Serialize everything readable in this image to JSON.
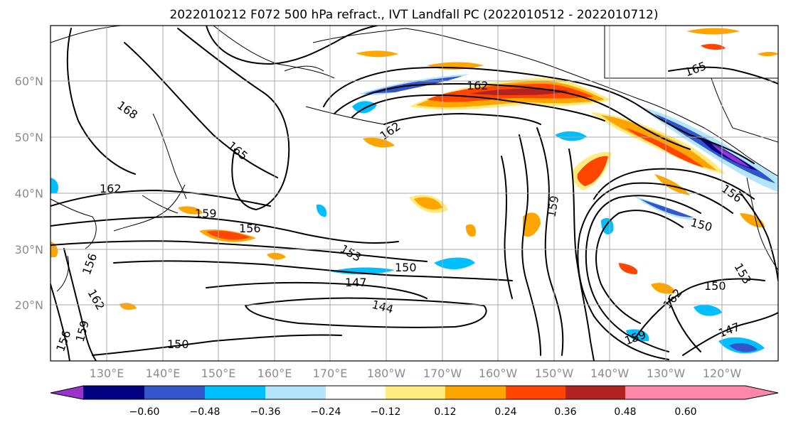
{
  "title": "2022010212 F072 500 hPa refract., IVT Landfall PC (2022010512 - 2022010712)",
  "lat_ticks": [
    "60°N",
    "50°N",
    "40°N",
    "30°N",
    "20°N"
  ],
  "lon_ticks": [
    "130°E",
    "140°E",
    "150°E",
    "160°E",
    "170°E",
    "180°W",
    "170°W",
    "160°W",
    "150°W",
    "140°W",
    "130°W",
    "120°W"
  ],
  "colorbar": {
    "colors": [
      "#9933cc",
      "#000080",
      "#3355cc",
      "#00bfff",
      "#b3e5fc",
      "#ffffff",
      "#ffeb80",
      "#ffa500",
      "#ff4500",
      "#b22222",
      "#ff88aa"
    ],
    "labels": [
      "−0.60",
      "−0.48",
      "−0.36",
      "−0.24",
      "−0.12",
      "0.12",
      "0.24",
      "0.36",
      "0.48",
      "0.60"
    ]
  },
  "contour_labels": [
    "168",
    "165",
    "162",
    "162",
    "162",
    "165",
    "159",
    "159",
    "156",
    "156",
    "156",
    "153",
    "153",
    "150",
    "150",
    "150",
    "150",
    "147",
    "147",
    "144",
    "159",
    "162",
    "159",
    "162",
    "156"
  ]
}
